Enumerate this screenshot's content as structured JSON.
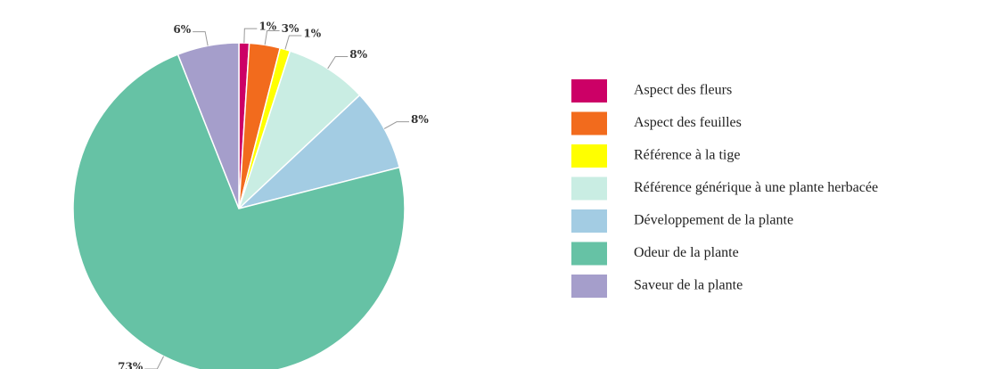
{
  "chart_data": {
    "type": "pie",
    "categories": [
      "Aspect des fleurs",
      "Aspect des feuilles",
      "Référence à la tige",
      "Référence générique à une plante herbacée",
      "Développement de la plante",
      "Odeur de la plante",
      "Saveur de la plante"
    ],
    "values": [
      1,
      3,
      1,
      8,
      8,
      73,
      6
    ],
    "value_labels": [
      "1%",
      "3%",
      "1%",
      "8%",
      "8%",
      "73%",
      "6%"
    ],
    "colors": [
      "#cc0066",
      "#f26b1d",
      "#ffff00",
      "#c9ede3",
      "#a3cce3",
      "#66c2a5",
      "#a59ecb"
    ],
    "legend": "right"
  }
}
